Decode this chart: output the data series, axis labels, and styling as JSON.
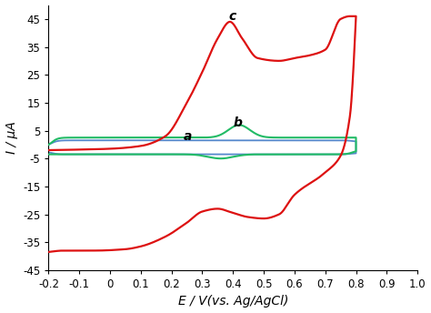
{
  "title": "",
  "xlabel": "E / V(vs. Ag/AgCl)",
  "ylabel": "I / μA",
  "xlim": [
    -0.2,
    1.0
  ],
  "ylim": [
    -45,
    50
  ],
  "yticks": [
    -45,
    -35,
    -25,
    -15,
    -5,
    5,
    15,
    25,
    35,
    45
  ],
  "xticks": [
    -0.2,
    -0.1,
    0.0,
    0.1,
    0.2,
    0.3,
    0.4,
    0.5,
    0.6,
    0.7,
    0.8,
    0.9,
    1.0
  ],
  "curve_a_color": "#5588cc",
  "curve_b_color": "#22bb66",
  "curve_c_color": "#dd1111",
  "label_a": "a",
  "label_b": "b",
  "label_c": "c",
  "background_color": "#ffffff"
}
